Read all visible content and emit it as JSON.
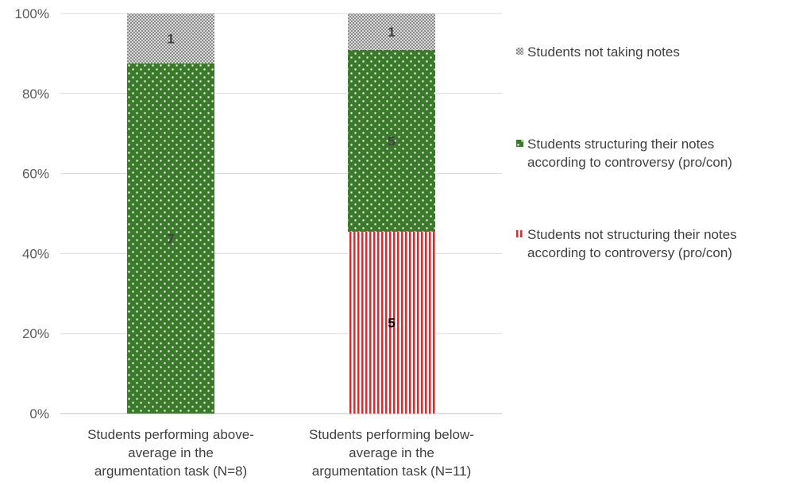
{
  "chart_data": {
    "type": "bar",
    "stacked": "percent",
    "categories": [
      [
        "Students performing above-",
        "average in the",
        "argumentation task (N=8)"
      ],
      [
        "Students performing below-",
        "average in the",
        "argumentation task (N=11)"
      ]
    ],
    "series": [
      {
        "name": "Students not structuring their notes according to controversy (pro/con)",
        "legend_lines": [
          "Students not structuring their notes",
          "according to controversy (pro/con)"
        ],
        "values": [
          0,
          5
        ],
        "labels": [
          "",
          "5"
        ],
        "color": "#e8262a",
        "pattern": "vertical-stripes"
      },
      {
        "name": "Students structuring their notes according to controversy (pro/con)",
        "legend_lines": [
          "Students structuring their notes",
          "according to controversy (pro/con)"
        ],
        "values": [
          7,
          5
        ],
        "labels": [
          "7",
          "5"
        ],
        "color": "#3a7a2a",
        "pattern": "dots"
      },
      {
        "name": "Students not taking notes",
        "legend_lines": [
          "Students not taking notes"
        ],
        "values": [
          1,
          1
        ],
        "labels": [
          "1",
          "1"
        ],
        "color": "#a6a6a6",
        "pattern": "checker"
      }
    ],
    "legend_order": [
      2,
      1,
      0
    ],
    "yticks": [
      "0%",
      "20%",
      "40%",
      "60%",
      "80%",
      "100%"
    ],
    "ylim": [
      0,
      100
    ],
    "grid": true,
    "legend_position": "right"
  }
}
